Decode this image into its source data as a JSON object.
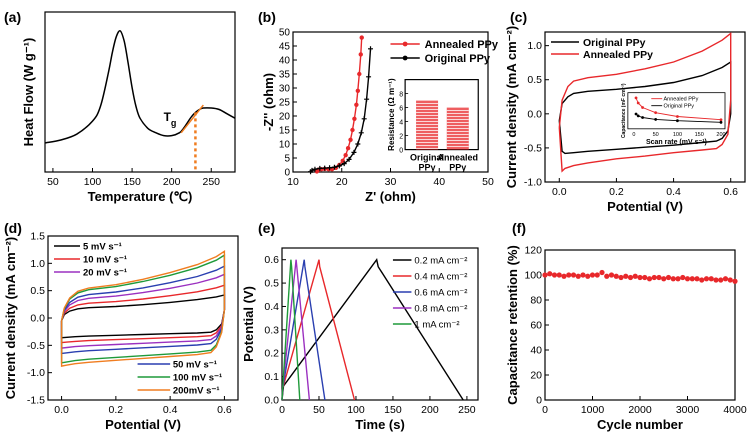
{
  "chart_data": [
    {
      "id": "a",
      "panel_label": "(a)",
      "type": "line",
      "xlabel": "Temperature (℃)",
      "ylabel": "Heat Flow (W g⁻¹)",
      "xlim": [
        40,
        280
      ],
      "x_ticks": [
        "50",
        "100",
        "150",
        "200",
        "250"
      ],
      "y_ticks": [],
      "annotation": "Tg",
      "series": [
        {
          "x": [
            40,
            60,
            80,
            100,
            110,
            120,
            125,
            130,
            135,
            140,
            145,
            150,
            155,
            160,
            170,
            180,
            190,
            200,
            210,
            215,
            220,
            225,
            230,
            235,
            240,
            250,
            260,
            270,
            280
          ],
          "y": [
            0.2,
            0.22,
            0.26,
            0.35,
            0.45,
            0.68,
            0.82,
            0.93,
            0.97,
            0.9,
            0.75,
            0.58,
            0.45,
            0.37,
            0.3,
            0.27,
            0.25,
            0.25,
            0.27,
            0.3,
            0.34,
            0.38,
            0.41,
            0.43,
            0.44,
            0.44,
            0.43,
            0.4,
            0.37
          ],
          "color": "#000000"
        }
      ],
      "tg_x": 230,
      "tg_marker_color": "#f07d20"
    },
    {
      "id": "b",
      "panel_label": "(b)",
      "type": "line",
      "xlabel": "Z' (ohm)",
      "ylabel": "-Z'' (ohm)",
      "xlim": [
        10,
        50
      ],
      "ylim": [
        0,
        50
      ],
      "x_ticks": [
        "10",
        "20",
        "30",
        "40",
        "50"
      ],
      "y_ticks": [
        "0",
        "5",
        "10",
        "15",
        "20",
        "25",
        "30",
        "35",
        "40",
        "45",
        "50"
      ],
      "legend": [
        "Annealed PPy",
        "Original PPy"
      ],
      "series": [
        {
          "name": "Annealed PPy",
          "color": "#e8282b",
          "x": [
            14.9,
            15.2,
            15.8,
            16.5,
            17.3,
            18.0,
            18.8,
            19.5,
            20.2,
            20.8,
            21.3,
            21.8,
            22.2,
            22.6,
            23.0,
            23.3,
            23.6,
            23.9,
            24.1
          ],
          "y": [
            0.2,
            0.8,
            1.0,
            1.1,
            1.0,
            1.0,
            1.5,
            2.5,
            4.0,
            6.0,
            8.5,
            11.5,
            15.0,
            19.0,
            24.0,
            29.0,
            35.0,
            42.0,
            48.0
          ]
        },
        {
          "name": "Original PPy",
          "color": "#000000",
          "x": [
            13.6,
            13.9,
            14.5,
            15.5,
            16.5,
            17.5,
            18.5,
            19.5,
            20.5,
            21.5,
            22.5,
            23.3,
            24.0,
            24.6,
            25.1,
            25.5,
            25.9
          ],
          "y": [
            0.1,
            0.6,
            1.0,
            1.3,
            1.4,
            1.5,
            1.7,
            2.2,
            3.0,
            4.5,
            7.0,
            10.0,
            14.0,
            19.0,
            26.0,
            34.0,
            44.0
          ]
        }
      ],
      "inset": {
        "type": "bar",
        "ylabel": "Resistance (Ω m⁻¹)",
        "categories": [
          "Original PPy",
          "Annealed PPy"
        ],
        "values": [
          7.0,
          6.0
        ],
        "ylim": [
          0,
          10
        ],
        "color": "#e8282b"
      }
    },
    {
      "id": "c",
      "panel_label": "(c)",
      "type": "line",
      "xlabel": "Potential (V)",
      "ylabel": "Current density (mA cm⁻²)",
      "xlim": [
        -0.05,
        0.65
      ],
      "ylim": [
        -1.0,
        1.2
      ],
      "x_ticks": [
        "0.0",
        "0.2",
        "0.4",
        "0.6"
      ],
      "y_ticks": [
        "-1.0",
        "-0.5",
        "0.0",
        "0.5",
        "1.0"
      ],
      "legend": [
        "Original PPy",
        "Annealed PPy"
      ],
      "series": [
        {
          "name": "Original PPy",
          "color": "#000000",
          "x": [
            0.0,
            0.01,
            0.03,
            0.05,
            0.1,
            0.2,
            0.3,
            0.4,
            0.5,
            0.57,
            0.6,
            0.6,
            0.59,
            0.57,
            0.55,
            0.5,
            0.4,
            0.3,
            0.2,
            0.1,
            0.05,
            0.02,
            0.01,
            0.0
          ],
          "y": [
            -0.1,
            0.15,
            0.25,
            0.3,
            0.33,
            0.36,
            0.4,
            0.46,
            0.56,
            0.68,
            0.76,
            0.0,
            -0.25,
            -0.36,
            -0.4,
            -0.42,
            -0.46,
            -0.49,
            -0.52,
            -0.55,
            -0.57,
            -0.58,
            -0.55,
            -0.1
          ]
        },
        {
          "name": "Annealed PPy",
          "color": "#e8282b",
          "x": [
            0.0,
            0.01,
            0.03,
            0.05,
            0.1,
            0.2,
            0.3,
            0.4,
            0.5,
            0.57,
            0.6,
            0.6,
            0.59,
            0.57,
            0.55,
            0.5,
            0.4,
            0.3,
            0.2,
            0.1,
            0.05,
            0.02,
            0.01,
            0.0
          ],
          "y": [
            -0.2,
            0.2,
            0.4,
            0.48,
            0.53,
            0.58,
            0.66,
            0.76,
            0.92,
            1.08,
            1.18,
            0.2,
            -0.3,
            -0.45,
            -0.51,
            -0.53,
            -0.57,
            -0.62,
            -0.66,
            -0.72,
            -0.76,
            -0.8,
            -0.84,
            -0.2
          ]
        }
      ],
      "inset": {
        "type": "line",
        "xlabel": "Scan rate (mV s⁻¹)",
        "ylabel": "Capacitance (mF cm⁻²)",
        "x_ticks": [
          "0",
          "50",
          "100",
          "150",
          "200"
        ],
        "xlim": [
          0,
          200
        ],
        "ylim": [
          0,
          100
        ],
        "legend": [
          "Annealed PPy",
          "Original PPy"
        ],
        "series": [
          {
            "name": "Annealed PPy",
            "color": "#e8282b",
            "x": [
              5,
              10,
              20,
              50,
              100,
              200
            ],
            "y": [
              90,
              74,
              60,
              44,
              32,
              22
            ]
          },
          {
            "name": "Original PPy",
            "color": "#000000",
            "x": [
              5,
              10,
              20,
              50,
              100,
              200
            ],
            "y": [
              40,
              34,
              29,
              23,
              19,
              14
            ]
          }
        ]
      }
    },
    {
      "id": "d",
      "panel_label": "(d)",
      "type": "line",
      "xlabel": "Potential (V)",
      "ylabel": "Current density (mA cm⁻²)",
      "xlim": [
        -0.05,
        0.65
      ],
      "ylim": [
        -1.5,
        1.5
      ],
      "x_ticks": [
        "0.0",
        "0.2",
        "0.4",
        "0.6"
      ],
      "y_ticks": [
        "-1.5",
        "-1.0",
        "-0.5",
        "0.0",
        "0.5",
        "1.0",
        "1.5"
      ],
      "legend_top": [
        "5 mV s⁻¹",
        "10 mV s⁻¹",
        "20 mV s⁻¹"
      ],
      "legend_bottom": [
        "50 mV s⁻¹",
        "100 mV s⁻¹",
        "200mV s⁻¹"
      ],
      "series": [
        {
          "name": "5 mV s⁻¹",
          "color": "#000000",
          "peak": 0.42,
          "base": -0.36
        },
        {
          "name": "10 mV s⁻¹",
          "color": "#e8282b",
          "peak": 0.6,
          "base": -0.45
        },
        {
          "name": "20 mV s⁻¹",
          "color": "#9b30c0",
          "peak": 0.8,
          "base": -0.55
        },
        {
          "name": "50 mV s⁻¹",
          "color": "#2a3fb0",
          "peak": 0.95,
          "base": -0.65
        },
        {
          "name": "100 mV s⁻¹",
          "color": "#1f9a3a",
          "peak": 1.15,
          "base": -0.82
        },
        {
          "name": "200mV s⁻¹",
          "color": "#f07d20",
          "peak": 1.22,
          "base": -0.88
        }
      ]
    },
    {
      "id": "e",
      "panel_label": "(e)",
      "type": "line",
      "xlabel": "Time (s)",
      "ylabel": "Potential (V)",
      "xlim": [
        0,
        265
      ],
      "ylim": [
        0,
        0.65
      ],
      "x_ticks": [
        "0",
        "50",
        "100",
        "150",
        "200",
        "250"
      ],
      "y_ticks": [
        "0.0",
        "0.1",
        "0.2",
        "0.3",
        "0.4",
        "0.5",
        "0.6"
      ],
      "legend": [
        "0.2 mA cm⁻²",
        "0.4 mA cm⁻²",
        "0.6 mA cm⁻²",
        "0.8 mA cm⁻²",
        "1 mA cm⁻²"
      ],
      "series": [
        {
          "name": "0.2 mA cm⁻²",
          "color": "#000000",
          "x": [
            0,
            2,
            128,
            130,
            245
          ],
          "y": [
            0.0,
            0.06,
            0.6,
            0.57,
            0.0
          ]
        },
        {
          "name": "0.4 mA cm⁻²",
          "color": "#e8282b",
          "x": [
            0,
            1,
            50,
            51,
            98
          ],
          "y": [
            0.0,
            0.05,
            0.6,
            0.57,
            0.0
          ]
        },
        {
          "name": "0.6 mA cm⁻²",
          "color": "#2a3fb0",
          "x": [
            0,
            1,
            30,
            31,
            58
          ],
          "y": [
            0.0,
            0.05,
            0.6,
            0.57,
            0.0
          ]
        },
        {
          "name": "0.8 mA cm⁻²",
          "color": "#9b30c0",
          "x": [
            0,
            1,
            19,
            20,
            37
          ],
          "y": [
            0.0,
            0.05,
            0.6,
            0.57,
            0.0
          ]
        },
        {
          "name": "1 mA cm⁻²",
          "color": "#1f9a3a",
          "x": [
            0,
            1,
            12,
            13,
            24
          ],
          "y": [
            0.0,
            0.05,
            0.6,
            0.57,
            0.0
          ]
        }
      ]
    },
    {
      "id": "f",
      "panel_label": "(f)",
      "type": "scatter",
      "xlabel": "Cycle number",
      "ylabel": "Capacitance retention (%)",
      "xlim": [
        0,
        4000
      ],
      "ylim": [
        0,
        120
      ],
      "x_ticks": [
        "0",
        "1000",
        "2000",
        "3000",
        "4000"
      ],
      "y_ticks": [
        "0",
        "20",
        "40",
        "60",
        "80",
        "100",
        "120"
      ],
      "series": [
        {
          "name": "",
          "color": "#e8282b",
          "x": [
            0,
            100,
            200,
            300,
            400,
            500,
            600,
            700,
            800,
            900,
            1000,
            1100,
            1200,
            1300,
            1400,
            1500,
            1600,
            1700,
            1800,
            1900,
            2000,
            2100,
            2200,
            2300,
            2400,
            2500,
            2600,
            2700,
            2800,
            2900,
            3000,
            3100,
            3200,
            3300,
            3400,
            3500,
            3600,
            3700,
            3800,
            3900,
            4000
          ],
          "y": [
            100,
            101,
            100,
            100,
            99,
            100,
            100,
            99,
            100,
            99,
            100,
            100,
            102,
            99,
            100,
            99,
            98,
            99,
            98,
            99,
            98,
            98,
            97,
            98,
            98,
            97,
            98,
            97,
            97,
            98,
            97,
            97,
            97,
            96,
            97,
            97,
            96,
            96,
            97,
            96,
            95
          ]
        }
      ]
    }
  ]
}
